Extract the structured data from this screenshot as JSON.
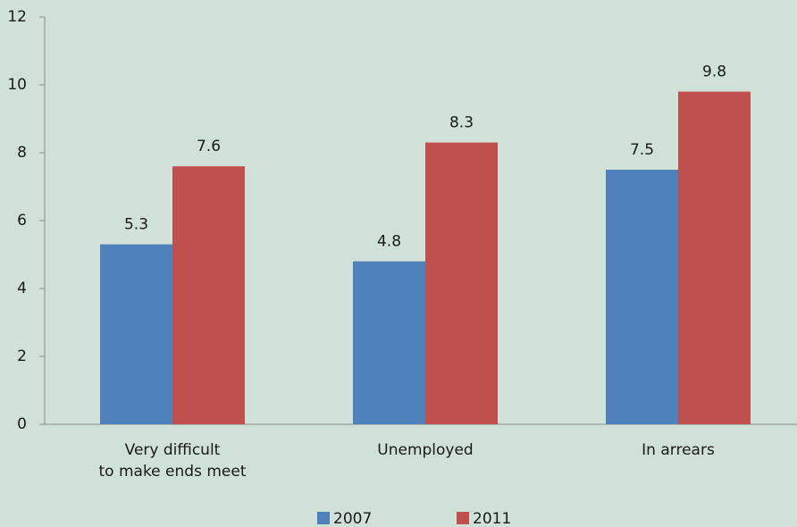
{
  "chart_data": {
    "type": "bar",
    "categories": [
      "Very difficult\nto make ends meet",
      "Unemployed",
      "In arrears"
    ],
    "series": [
      {
        "name": "2007",
        "color": "#4f81bd",
        "values": [
          5.3,
          4.8,
          7.5
        ]
      },
      {
        "name": "2011",
        "color": "#c0504d",
        "values": [
          7.6,
          8.3,
          9.8
        ]
      }
    ],
    "ylim": [
      0,
      12
    ],
    "yticks": [
      0,
      2,
      4,
      6,
      8,
      10,
      12
    ],
    "grid": false,
    "legend": "bottom"
  }
}
